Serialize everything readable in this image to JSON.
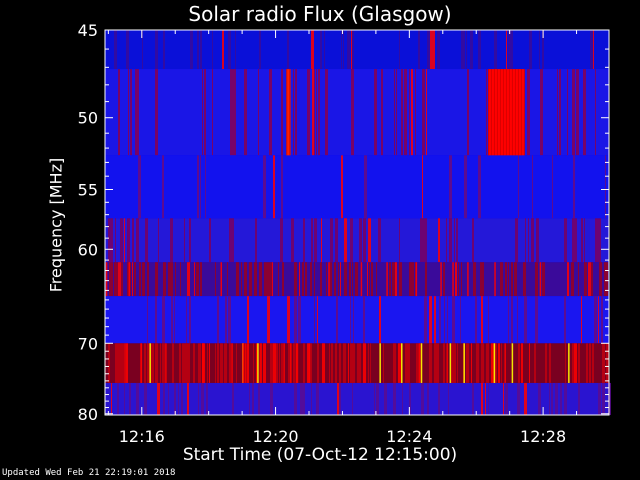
{
  "chart_data": {
    "type": "heatmap",
    "title": "Solar radio Flux (Glasgow)",
    "xlabel": "Start Time (07-Oct-12 12:15:00)",
    "ylabel": "Frequency [MHz]",
    "x_ticks": [
      "12:16",
      "12:20",
      "12:24",
      "12:28"
    ],
    "x_tick_minutes": [
      16,
      20,
      24,
      28
    ],
    "xlim_minutes": [
      14.9,
      29.97
    ],
    "y_ticks": [
      45,
      50,
      55,
      60,
      70,
      80
    ],
    "ylim_mhz": [
      45,
      80.2
    ],
    "y_scale": "reciprocal",
    "colors": {
      "background": "#000000",
      "low": "#0000ff",
      "mid": "#8b0000",
      "high": "#ff0000",
      "peak": "#ffff00"
    },
    "bands_mhz": [
      {
        "from": 45,
        "to": 47.1,
        "base": "#0a10d8",
        "mix": 0.25,
        "accent": "#3a0a9a"
      },
      {
        "from": 47.1,
        "to": 52.5,
        "base": "#1a16e6",
        "mix": 0.3,
        "accent": "#8a0050"
      },
      {
        "from": 52.5,
        "to": 57.3,
        "base": "#1212ee",
        "mix": 0.12,
        "accent": "#6a0a80"
      },
      {
        "from": 57.3,
        "to": 61.2,
        "base": "#2418d8",
        "mix": 0.35,
        "accent": "#7a0060"
      },
      {
        "from": 61.2,
        "to": 64.6,
        "base": "#3a0a9a",
        "mix": 0.55,
        "accent": "#9a0020"
      },
      {
        "from": 64.6,
        "to": 70.0,
        "base": "#1a16f0",
        "mix": 0.25,
        "accent": "#6a0a80"
      },
      {
        "from": 70.0,
        "to": 75.3,
        "base": "#7a0020",
        "mix": 0.65,
        "accent": "#c00010"
      },
      {
        "from": 75.3,
        "to": 80.2,
        "base": "#2a14d0",
        "mix": 0.35,
        "accent": "#5a0a90"
      }
    ],
    "hot_spots": [
      {
        "minute_from": 26.35,
        "minute_to": 27.45,
        "mhz_from": 47.1,
        "mhz_to": 52.5,
        "color": "#ff0000"
      },
      {
        "minute_from": 20.32,
        "minute_to": 20.45,
        "mhz_from": 47.1,
        "mhz_to": 52.5,
        "color": "#ff2000"
      }
    ]
  },
  "footer": {
    "updated": "Updated Wed Feb 21 22:19:01 2018"
  }
}
